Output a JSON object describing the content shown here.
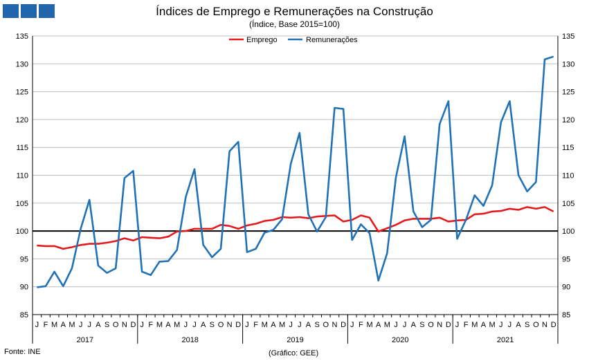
{
  "title": "Índices de Emprego e Remunerações na Construção",
  "subtitle": "(Índice, Base 2015=100)",
  "source": "Fonte: INE",
  "credit": "(Gráfico: GEE)",
  "colors": {
    "emprego": "#e41a1c",
    "remuneracoes": "#2171b5",
    "reference": "#000000",
    "grid": "#bfbfbf",
    "logo": "#2166ac"
  },
  "chart_data": {
    "type": "line",
    "ylim": [
      85,
      135
    ],
    "y_ticks": [
      85,
      90,
      95,
      100,
      105,
      110,
      115,
      120,
      125,
      130,
      135
    ],
    "y_axis_both_sides": true,
    "grid": "horizontal",
    "legend_position": "top-center",
    "reference_line": 100,
    "month_labels": [
      "J",
      "F",
      "M",
      "A",
      "M",
      "J",
      "J",
      "A",
      "S",
      "O",
      "N",
      "D"
    ],
    "years": [
      "2017",
      "2018",
      "2019",
      "2020",
      "2021"
    ],
    "x": [
      "2017-01",
      "2017-02",
      "2017-03",
      "2017-04",
      "2017-05",
      "2017-06",
      "2017-07",
      "2017-08",
      "2017-09",
      "2017-10",
      "2017-11",
      "2017-12",
      "2018-01",
      "2018-02",
      "2018-03",
      "2018-04",
      "2018-05",
      "2018-06",
      "2018-07",
      "2018-08",
      "2018-09",
      "2018-10",
      "2018-11",
      "2018-12",
      "2019-01",
      "2019-02",
      "2019-03",
      "2019-04",
      "2019-05",
      "2019-06",
      "2019-07",
      "2019-08",
      "2019-09",
      "2019-10",
      "2019-11",
      "2019-12",
      "2020-01",
      "2020-02",
      "2020-03",
      "2020-04",
      "2020-05",
      "2020-06",
      "2020-07",
      "2020-08",
      "2020-09",
      "2020-10",
      "2020-11",
      "2020-12",
      "2021-01",
      "2021-02",
      "2021-03",
      "2021-04",
      "2021-05",
      "2021-06",
      "2021-07",
      "2021-08",
      "2021-09",
      "2021-10",
      "2021-11",
      "2021-12"
    ],
    "series": [
      {
        "name": "Emprego",
        "values": [
          97.4,
          97.3,
          97.3,
          96.8,
          97.1,
          97.5,
          97.7,
          97.7,
          97.9,
          98.2,
          98.7,
          98.3,
          98.9,
          98.8,
          98.7,
          99.0,
          99.9,
          100.0,
          100.4,
          100.4,
          100.4,
          101.1,
          100.9,
          100.4,
          101.0,
          101.3,
          101.8,
          102.0,
          102.5,
          102.4,
          102.5,
          102.3,
          102.6,
          102.7,
          102.8,
          101.7,
          102.0,
          102.8,
          102.4,
          99.9,
          100.5,
          101.1,
          101.9,
          102.2,
          102.2,
          102.2,
          102.4,
          101.7,
          101.9,
          102.0,
          103.0,
          103.1,
          103.5,
          103.6,
          104.0,
          103.8,
          104.3,
          104.0,
          104.3,
          103.5
        ]
      },
      {
        "name": "Remunerações",
        "values": [
          89.9,
          90.1,
          92.7,
          90.1,
          93.3,
          100.4,
          105.6,
          93.8,
          92.5,
          93.3,
          109.5,
          110.8,
          92.7,
          92.1,
          94.5,
          94.6,
          96.6,
          106.1,
          111.1,
          97.5,
          95.3,
          96.8,
          114.3,
          116.0,
          96.2,
          96.8,
          99.7,
          100.2,
          102.1,
          112.1,
          117.6,
          103.0,
          99.9,
          102.5,
          122.1,
          121.9,
          98.4,
          101.2,
          99.6,
          91.1,
          96.0,
          109.6,
          117.0,
          103.5,
          100.7,
          102.0,
          119.2,
          123.3,
          98.6,
          102.0,
          106.4,
          104.5,
          108.2,
          119.5,
          123.3,
          110.0,
          107.1,
          108.8,
          130.8,
          131.3
        ]
      }
    ]
  }
}
